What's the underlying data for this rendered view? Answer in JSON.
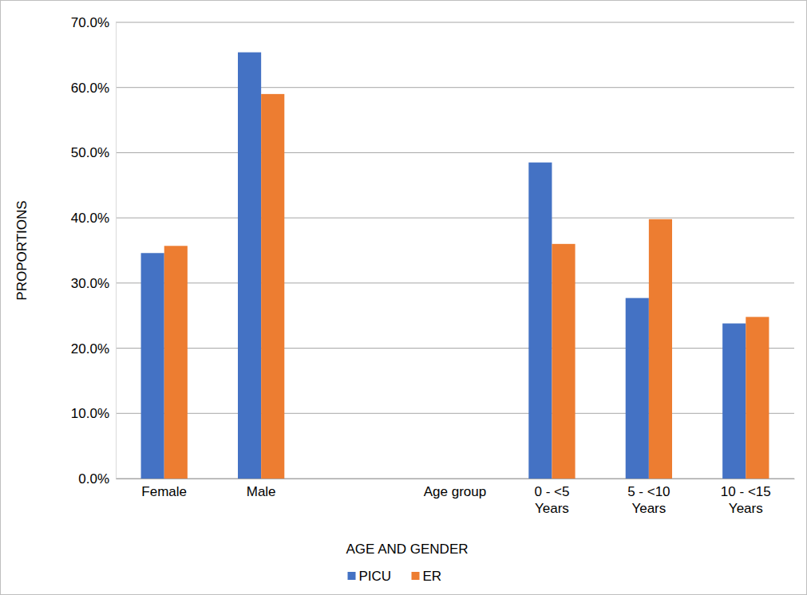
{
  "chart_data": {
    "type": "bar",
    "x_label": "AGE AND GENDER",
    "y_label": "PROPORTIONS",
    "categories": [
      "Female",
      "Male",
      null,
      "Age group",
      "0 - <5 Years",
      "5 - <10 Years",
      "10 - <15 Years"
    ],
    "series": [
      {
        "name": "PICU",
        "color": "#4472c4",
        "values": [
          34.6,
          65.4,
          null,
          null,
          48.5,
          27.7,
          23.8
        ]
      },
      {
        "name": "ER",
        "color": "#ed7d31",
        "values": [
          35.7,
          59.0,
          null,
          null,
          36.0,
          39.8,
          24.8
        ]
      }
    ],
    "ylim": [
      0,
      70
    ],
    "yticks": [
      {
        "value": 0,
        "label": "0.0%"
      },
      {
        "value": 10,
        "label": "10.0%"
      },
      {
        "value": 20,
        "label": "20.0%"
      },
      {
        "value": 30,
        "label": "30.0%"
      },
      {
        "value": 40,
        "label": "40.0%"
      },
      {
        "value": 50,
        "label": "50.0%"
      },
      {
        "value": 60,
        "label": "60.0%"
      },
      {
        "value": 70,
        "label": "70.0%"
      }
    ],
    "grid": true,
    "legend": "bottom"
  }
}
